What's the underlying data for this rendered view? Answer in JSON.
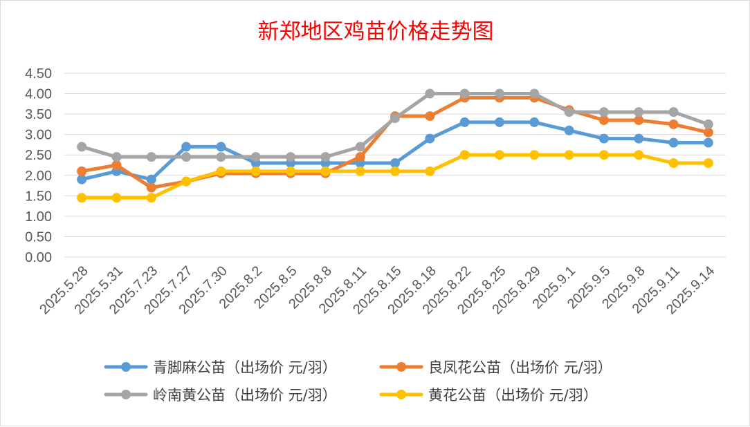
{
  "chart_data": {
    "type": "line",
    "title": "新郑地区鸡苗价格走势图",
    "xlabel": "",
    "ylabel": "",
    "ylim": [
      0,
      4.5
    ],
    "yticks": [
      "0.00",
      "0.50",
      "1.00",
      "1.50",
      "2.00",
      "2.50",
      "3.00",
      "3.50",
      "4.00",
      "4.50"
    ],
    "grid": true,
    "legend_position": "bottom",
    "categories": [
      "2025.5.28",
      "2025.5.31",
      "2025.7.23",
      "2025.7.27",
      "2025.7.30",
      "2025.8.2",
      "2025.8.5",
      "2025.8.8",
      "2025.8.11",
      "2025.8.15",
      "2025.8.18",
      "2025.8.22",
      "2025.8.25",
      "2025.8.29",
      "2025.9.1",
      "2025.9.5",
      "2025.9.8",
      "2025.9.11",
      "2025.9.14"
    ],
    "series": [
      {
        "name": "青脚麻公苗（出场价 元/羽）",
        "color": "#5b9bd5",
        "values": [
          1.9,
          2.1,
          1.9,
          2.7,
          2.7,
          2.3,
          2.3,
          2.3,
          2.3,
          2.3,
          2.9,
          3.3,
          3.3,
          3.3,
          3.1,
          2.9,
          2.9,
          2.8,
          2.8
        ]
      },
      {
        "name": "良凤花公苗（出场价 元/羽）",
        "color": "#ed7d31",
        "values": [
          2.1,
          2.25,
          1.7,
          1.85,
          2.05,
          2.05,
          2.05,
          2.05,
          2.45,
          3.45,
          3.45,
          3.9,
          3.9,
          3.9,
          3.6,
          3.35,
          3.35,
          3.25,
          3.05
        ]
      },
      {
        "name": "岭南黄公苗（出场价 元/羽）",
        "color": "#a5a5a5",
        "values": [
          2.7,
          2.45,
          2.45,
          2.45,
          2.45,
          2.45,
          2.45,
          2.45,
          2.7,
          3.4,
          4.0,
          4.0,
          4.0,
          4.0,
          3.55,
          3.55,
          3.55,
          3.55,
          3.25
        ]
      },
      {
        "name": "黄花公苗（出场价 元/羽）",
        "color": "#ffc000",
        "values": [
          1.45,
          1.45,
          1.45,
          1.85,
          2.1,
          2.1,
          2.1,
          2.1,
          2.1,
          2.1,
          2.1,
          2.5,
          2.5,
          2.5,
          2.5,
          2.5,
          2.5,
          2.3,
          2.3
        ]
      }
    ]
  }
}
